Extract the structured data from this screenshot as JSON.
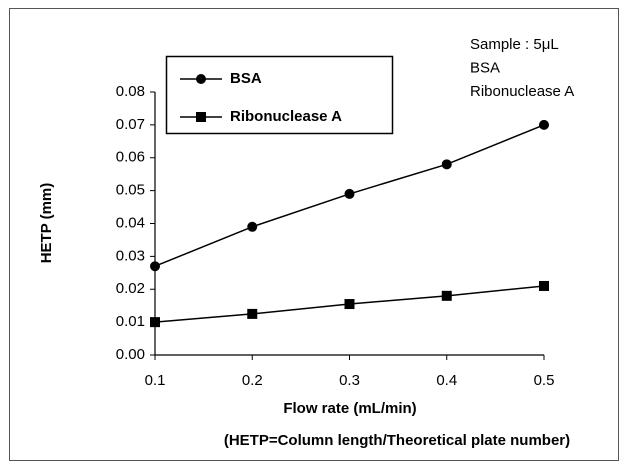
{
  "chart_data": {
    "type": "line",
    "x_label": "Flow rate (mL/min)",
    "y_label": "HETP (mm)",
    "annotations": [
      "Sample : 5μL",
      "BSA",
      "Ribonuclease A"
    ],
    "note": "(HETP=Column length/Theoretical plate number)",
    "x": [
      0.1,
      0.2,
      0.3,
      0.4,
      0.5
    ],
    "series": [
      {
        "name": "BSA",
        "color": "#000000",
        "marker": "circle",
        "values": [
          0.027,
          0.039,
          0.049,
          0.058,
          0.07
        ]
      },
      {
        "name": "Ribonuclease A",
        "color": "#000000",
        "marker": "square",
        "values": [
          0.01,
          0.0125,
          0.0155,
          0.018,
          0.021
        ]
      }
    ],
    "xlim": [
      0.1,
      0.5
    ],
    "xticks": [
      0.1,
      0.2,
      0.3,
      0.4,
      0.5
    ],
    "ylim": [
      0,
      0.08
    ],
    "yticks": [
      {
        "value": 0,
        "label": "0.00"
      },
      0.01,
      0.02,
      0.03,
      0.04,
      0.05,
      0.06,
      0.07,
      0.08
    ],
    "grid": false
  }
}
